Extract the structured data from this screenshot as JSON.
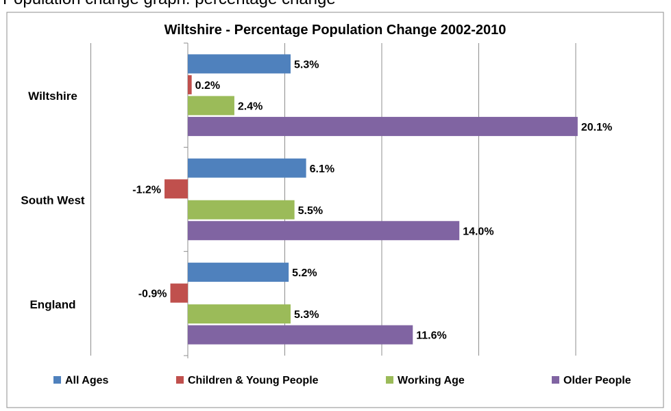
{
  "page": {
    "top_caption": "Population change graph: percentage change"
  },
  "chart_data": {
    "type": "bar",
    "orientation": "horizontal",
    "title": "Wiltshire - Percentage Population Change 2002-2010",
    "categories": [
      "Wiltshire",
      "South West",
      "England"
    ],
    "series": [
      {
        "name": "All Ages",
        "color": "#4F81BD",
        "values": [
          5.3,
          6.1,
          5.2
        ],
        "labels": [
          "5.3%",
          "6.1%",
          "5.2%"
        ]
      },
      {
        "name": "Children & Young People",
        "color": "#C0504D",
        "values": [
          0.2,
          -1.2,
          -0.9
        ],
        "labels": [
          "0.2%",
          "-1.2%",
          "-0.9%"
        ]
      },
      {
        "name": "Working Age",
        "color": "#9BBB59",
        "values": [
          2.4,
          5.5,
          5.3
        ],
        "labels": [
          "2.4%",
          "5.5%",
          "5.3%"
        ]
      },
      {
        "name": "Older People",
        "color": "#8064A2",
        "values": [
          20.1,
          14.0,
          11.6
        ],
        "labels": [
          "20.1%",
          "14.0%",
          "11.6%"
        ]
      }
    ],
    "xlim": [
      -5,
      20
    ],
    "grid_major": 5,
    "legend_position": "bottom",
    "xlabel": "",
    "ylabel": ""
  }
}
